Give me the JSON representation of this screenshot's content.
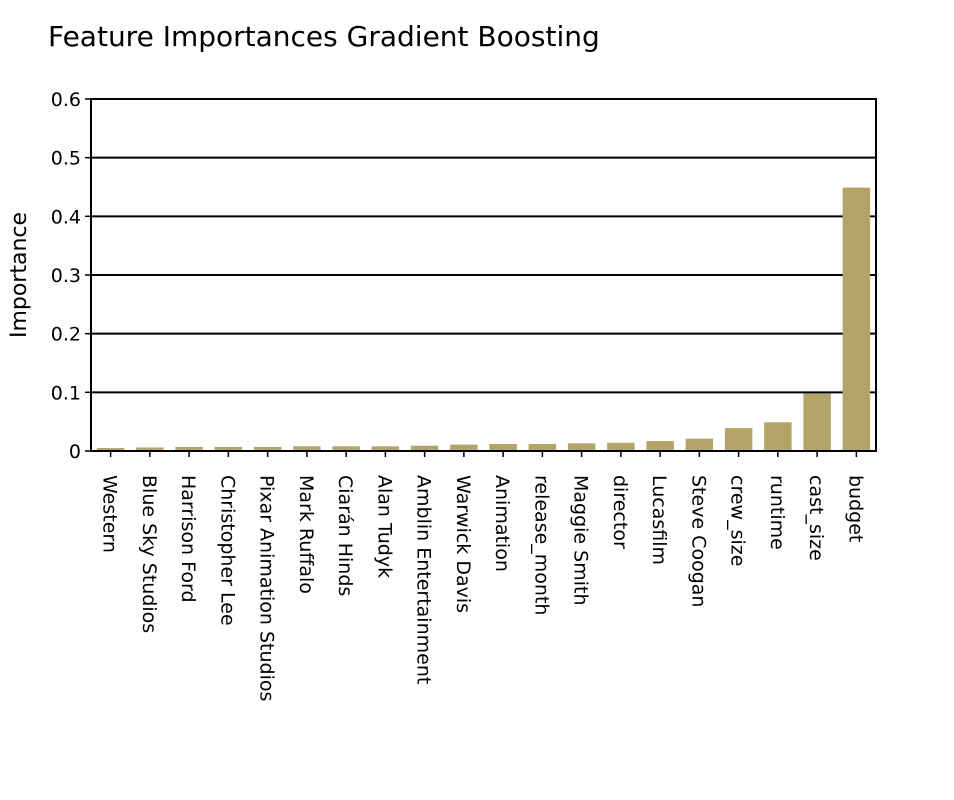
{
  "chart_data": {
    "type": "bar",
    "title": "Feature Importances Gradient Boosting",
    "xlabel": "",
    "ylabel": "Importance",
    "ylim": [
      0,
      0.6
    ],
    "yticks": [
      0,
      0.1,
      0.2,
      0.3,
      0.4,
      0.5,
      0.6
    ],
    "ytick_labels": [
      "0",
      "0.1",
      "0.2",
      "0.3",
      "0.4",
      "0.5",
      "0.6"
    ],
    "grid": true,
    "bar_color": "#b5a46a",
    "categories": [
      "Western",
      "Blue Sky Studios",
      "Harrison Ford",
      "Christopher Lee",
      "Pixar Animation Studios",
      "Mark Ruffalo",
      "Ciarán Hinds",
      "Alan Tudyk",
      "Amblin Entertainment",
      "Warwick Davis",
      "Animation",
      "release_month",
      "Maggie Smith",
      "director",
      "Lucasfilm",
      "Steve Coogan",
      "crew_size",
      "runtime",
      "cast_size",
      "budget"
    ],
    "values": [
      0.005,
      0.006,
      0.007,
      0.007,
      0.007,
      0.008,
      0.008,
      0.008,
      0.009,
      0.011,
      0.012,
      0.012,
      0.013,
      0.014,
      0.017,
      0.021,
      0.039,
      0.049,
      0.098,
      0.449
    ]
  }
}
